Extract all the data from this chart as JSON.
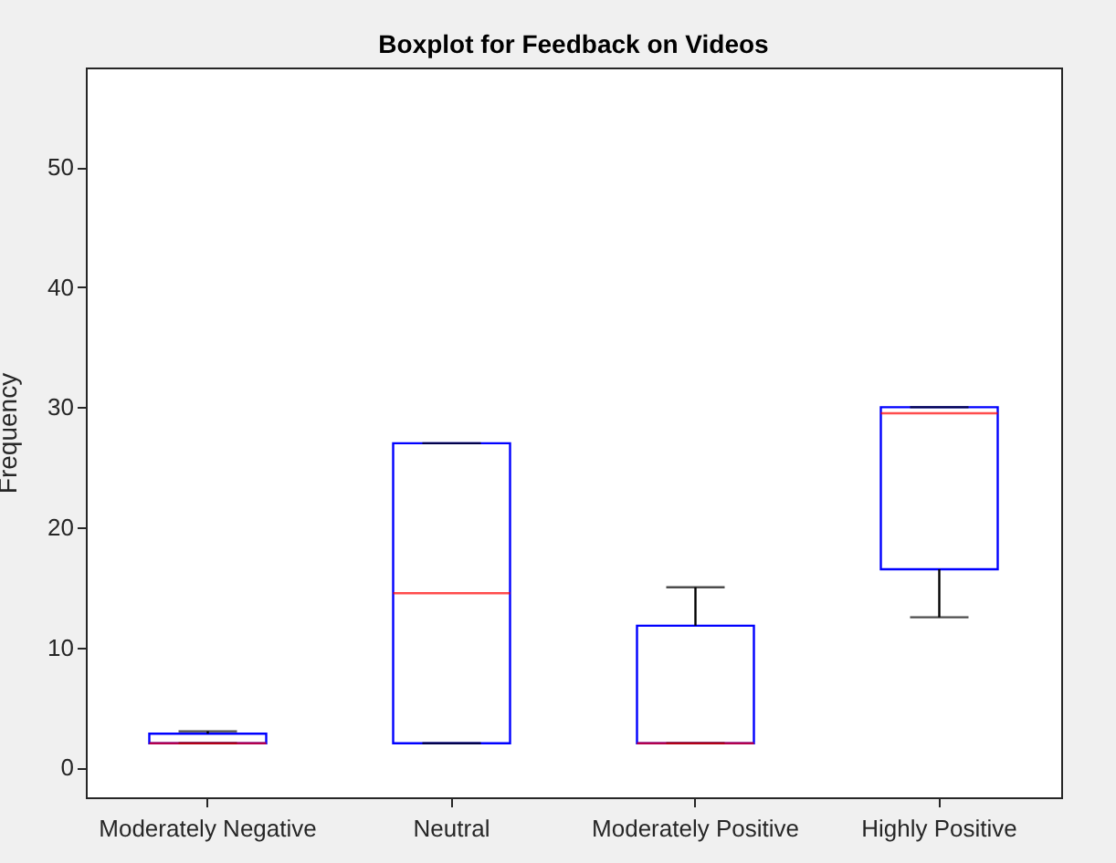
{
  "chart_data": {
    "type": "box",
    "title": "Boxplot for Feedback on Videos",
    "ylabel": "Frequency",
    "categories": [
      "Moderately Negative",
      "Neutral",
      "Moderately Positive",
      "Highly Positive"
    ],
    "series": [
      {
        "color": "#0000ff",
        "boxes": [
          {
            "low": 2,
            "q1": 2,
            "median": 2,
            "q3": 2.8,
            "high": 3
          },
          {
            "low": 2,
            "q1": 2,
            "median": 14.5,
            "q3": 27,
            "high": 27
          },
          {
            "low": 2,
            "q1": 2,
            "median": 2,
            "q3": 11.8,
            "high": 15
          },
          {
            "low": 12.5,
            "q1": 16.5,
            "median": 29.5,
            "q3": 30,
            "high": 30
          }
        ]
      }
    ],
    "ylim": [
      -2.5,
      58.3
    ],
    "yticks": [
      0,
      10,
      20,
      30,
      40,
      50
    ],
    "grid": false
  }
}
